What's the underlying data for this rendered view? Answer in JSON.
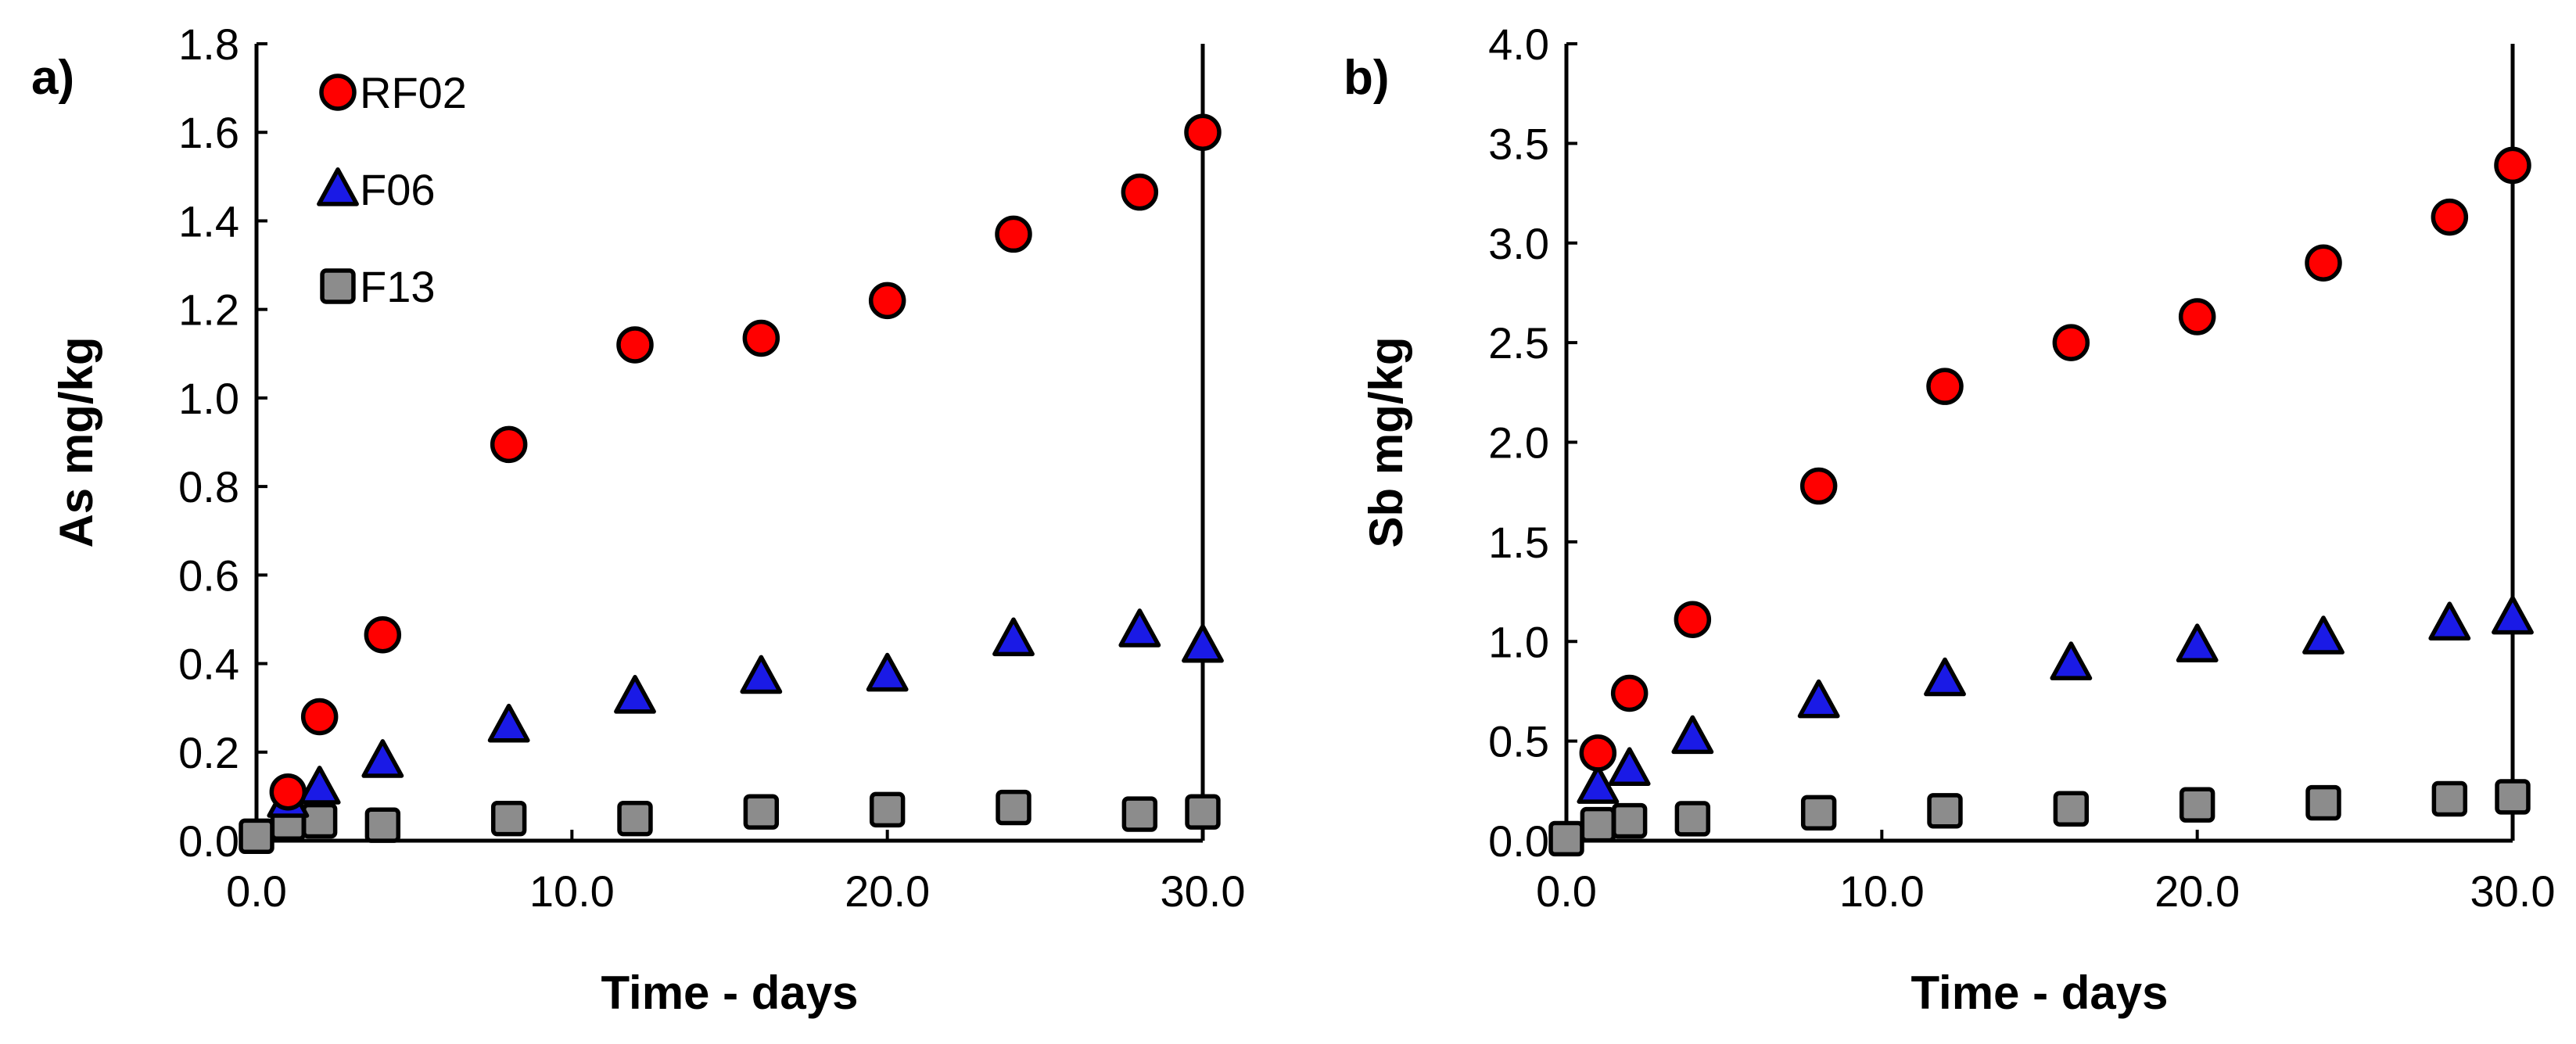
{
  "colors": {
    "RF02": "#ff0000",
    "F06": "#1a1ae6",
    "F13": "#8c8c8c",
    "axis": "#000000"
  },
  "chart_data": [
    {
      "type": "scatter",
      "panel_label": "a)",
      "xlabel": "Time - days",
      "ylabel": "As mg/kg",
      "xlim": [
        0,
        30
      ],
      "ylim": [
        0,
        1.8
      ],
      "xticks": [
        0,
        10,
        20,
        30
      ],
      "xtick_labels": [
        "0.0",
        "10.0",
        "20.0",
        "30.0"
      ],
      "yticks": [
        0,
        0.2,
        0.4,
        0.6,
        0.8,
        1.0,
        1.2,
        1.4,
        1.6,
        1.8
      ],
      "ytick_labels": [
        "0.0",
        "0.2",
        "0.4",
        "0.6",
        "0.8",
        "1.0",
        "1.2",
        "1.4",
        "1.6",
        "1.8"
      ],
      "legend": {
        "position": "top-left",
        "entries": [
          "RF02",
          "F06",
          "F13"
        ]
      },
      "series": [
        {
          "name": "RF02",
          "marker": "circle",
          "x": [
            1,
            2,
            4,
            8,
            12,
            16,
            20,
            24,
            28,
            30
          ],
          "y": [
            0.11,
            0.28,
            0.465,
            0.895,
            1.12,
            1.135,
            1.22,
            1.37,
            1.465,
            1.6
          ]
        },
        {
          "name": "F06",
          "marker": "triangle",
          "x": [
            1,
            2,
            4,
            8,
            12,
            16,
            20,
            24,
            28,
            30
          ],
          "y": [
            0.09,
            0.12,
            0.18,
            0.26,
            0.325,
            0.37,
            0.375,
            0.455,
            0.475,
            0.44
          ]
        },
        {
          "name": "F13",
          "marker": "square",
          "x": [
            0,
            1,
            2,
            4,
            8,
            12,
            16,
            20,
            24,
            28,
            30
          ],
          "y": [
            0.01,
            0.04,
            0.045,
            0.035,
            0.05,
            0.05,
            0.065,
            0.07,
            0.075,
            0.06,
            0.065
          ]
        }
      ]
    },
    {
      "type": "scatter",
      "panel_label": "b)",
      "xlabel": "Time - days",
      "ylabel": "Sb mg/kg",
      "xlim": [
        0,
        30
      ],
      "ylim": [
        0,
        4.0
      ],
      "xticks": [
        0,
        10,
        20,
        30
      ],
      "xtick_labels": [
        "0.0",
        "10.0",
        "20.0",
        "30.0"
      ],
      "yticks": [
        0,
        0.5,
        1.0,
        1.5,
        2.0,
        2.5,
        3.0,
        3.5,
        4.0
      ],
      "ytick_labels": [
        "0.0",
        "0.5",
        "1.0",
        "1.5",
        "2.0",
        "2.5",
        "3.0",
        "3.5",
        "4.0"
      ],
      "series": [
        {
          "name": "RF02",
          "marker": "circle",
          "x": [
            1,
            2,
            4,
            8,
            12,
            16,
            20,
            24,
            28,
            30
          ],
          "y": [
            0.44,
            0.74,
            1.11,
            1.78,
            2.28,
            2.5,
            2.63,
            2.9,
            3.13,
            3.39
          ]
        },
        {
          "name": "F06",
          "marker": "triangle",
          "x": [
            1,
            2,
            4,
            8,
            12,
            16,
            20,
            24,
            28,
            30
          ],
          "y": [
            0.27,
            0.36,
            0.52,
            0.7,
            0.81,
            0.89,
            0.98,
            1.02,
            1.09,
            1.12
          ]
        },
        {
          "name": "F13",
          "marker": "square",
          "x": [
            0,
            1,
            2,
            4,
            8,
            12,
            16,
            20,
            24,
            28,
            30
          ],
          "y": [
            0.01,
            0.08,
            0.1,
            0.11,
            0.14,
            0.15,
            0.16,
            0.18,
            0.19,
            0.21,
            0.22
          ]
        }
      ]
    }
  ]
}
